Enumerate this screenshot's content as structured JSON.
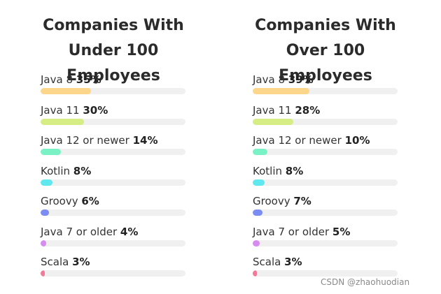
{
  "chart_data": [
    {
      "type": "bar",
      "title": "Companies With Under 100 Employees",
      "categories": [
        "Java 8",
        "Java 11",
        "Java 12 or newer",
        "Kotlin",
        "Groovy",
        "Java 7 or older",
        "Scala"
      ],
      "values": [
        35,
        30,
        14,
        8,
        6,
        4,
        3
      ],
      "value_labels": [
        "35%",
        "30%",
        "14%",
        "8%",
        "6%",
        "4%",
        "3%"
      ],
      "xlim": [
        0,
        100
      ],
      "orientation": "horizontal",
      "grid": false,
      "legend": "none"
    },
    {
      "type": "bar",
      "title": "Companies With Over 100 Employees",
      "categories": [
        "Java 8",
        "Java 11",
        "Java 12 or newer",
        "Kotlin",
        "Groovy",
        "Java 7 or older",
        "Scala"
      ],
      "values": [
        39,
        28,
        10,
        8,
        7,
        5,
        3
      ],
      "value_labels": [
        "39%",
        "28%",
        "10%",
        "8%",
        "7%",
        "5%",
        "3%"
      ],
      "xlim": [
        0,
        100
      ],
      "orientation": "horizontal",
      "grid": false,
      "legend": "none"
    }
  ],
  "colors": {
    "bars": [
      "#fcd68a",
      "#d6ec84",
      "#7af2c6",
      "#5fe8ee",
      "#7b8cf2",
      "#d68bf0",
      "#f2789c"
    ],
    "track": "#f0f0f0",
    "text": "#2b2b2b"
  },
  "watermark": "CSDN @zhaohuodian"
}
